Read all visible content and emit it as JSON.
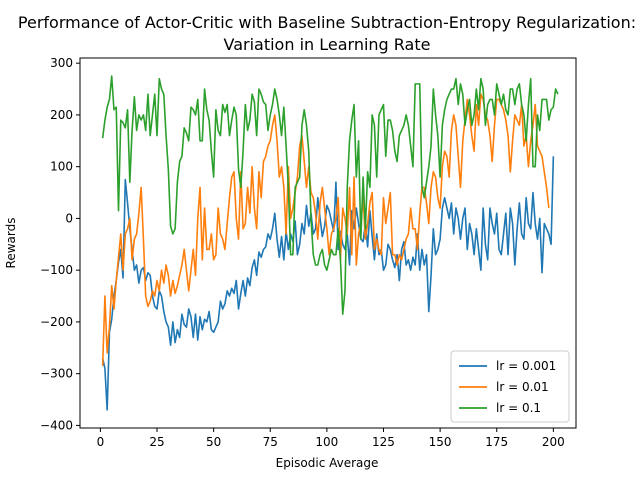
{
  "chart_data": {
    "type": "line",
    "title_line1": "Performance of Actor-Critic with Baseline Subtraction-Entropy Regularization:",
    "title_line2": "Variation in Learning Rate",
    "xlabel": "Episodic Average",
    "ylabel": "Rewards",
    "xlim": [
      -9,
      210
    ],
    "ylim": [
      -405,
      310
    ],
    "xticks": [
      0,
      25,
      50,
      75,
      100,
      125,
      150,
      175,
      200
    ],
    "yticks": [
      -400,
      -300,
      -200,
      -100,
      0,
      100,
      200,
      300
    ],
    "grid": false,
    "legend_position": "lower-right",
    "series": [
      {
        "name": "lr = 0.001",
        "color": "#1f77b4",
        "x_start": 1,
        "values": [
          -270,
          -290,
          -370,
          -220,
          -195,
          -150,
          -120,
          -85,
          -60,
          -115,
          75,
          30,
          -20,
          -60,
          -100,
          -90,
          -125,
          -100,
          -95,
          -120,
          -105,
          -110,
          -150,
          -170,
          -175,
          -140,
          -150,
          -180,
          -200,
          -210,
          -245,
          -200,
          -240,
          -215,
          -230,
          -185,
          -205,
          -210,
          -175,
          -190,
          -230,
          -185,
          -235,
          -190,
          -215,
          -195,
          -200,
          -180,
          -215,
          -220,
          -210,
          -200,
          -160,
          -175,
          -165,
          -140,
          -150,
          -135,
          -145,
          -120,
          -175,
          -145,
          -120,
          -150,
          -115,
          -130,
          -95,
          -80,
          -110,
          -65,
          -75,
          -60,
          -55,
          -30,
          -40,
          -20,
          10,
          -40,
          -75,
          -35,
          -80,
          -25,
          -60,
          -30,
          -45,
          -5,
          -70,
          -50,
          -10,
          -30,
          25,
          -15,
          10,
          -30,
          -20,
          40,
          0,
          -35,
          -15,
          25,
          15,
          -5,
          -25,
          70,
          -60,
          -25,
          -50,
          -60,
          -30,
          -90,
          15,
          -20,
          20,
          -10,
          -40,
          -45,
          -10,
          -55,
          15,
          -35,
          -80,
          -30,
          -70,
          -60,
          -100,
          -90,
          -50,
          -60,
          -80,
          -95,
          -70,
          -120,
          -60,
          -45,
          -90,
          -80,
          -100,
          -75,
          -90,
          -30,
          -100,
          -60,
          -90,
          -70,
          -180,
          -110,
          -20,
          -70,
          -60,
          -40,
          20,
          40,
          20,
          0,
          30,
          -30,
          20,
          0,
          -40,
          0,
          20,
          -60,
          -10,
          -30,
          -70,
          -20,
          -60,
          -100,
          20,
          -50,
          -80,
          20,
          -10,
          -30,
          10,
          -60,
          -70,
          -30,
          10,
          -70,
          20,
          -10,
          -90,
          -20,
          30,
          -30,
          -40,
          40,
          -10,
          -20,
          50,
          -10,
          -40,
          0,
          -105,
          -10,
          -20,
          -30,
          -50,
          120
        ]
      },
      {
        "name": "lr = 0.01",
        "color": "#ff7f0e",
        "x_start": 1,
        "values": [
          -285,
          -150,
          -260,
          -210,
          -130,
          -175,
          -120,
          -75,
          -30,
          -100,
          -30,
          -20,
          0,
          -80,
          -40,
          -30,
          10,
          60,
          -40,
          -150,
          -170,
          -160,
          -140,
          -150,
          -120,
          -140,
          -100,
          -125,
          -90,
          -110,
          -150,
          -120,
          -145,
          -130,
          -110,
          -90,
          -60,
          -100,
          -140,
          -100,
          -60,
          -110,
          0,
          60,
          -80,
          20,
          -60,
          -60,
          -30,
          -80,
          -70,
          20,
          -30,
          -40,
          -60,
          -10,
          40,
          80,
          90,
          0,
          -40,
          90,
          -20,
          -10,
          60,
          10,
          100,
          20,
          -20,
          90,
          40,
          110,
          120,
          140,
          150,
          180,
          200,
          150,
          80,
          100,
          60,
          -30,
          100,
          0,
          20,
          50,
          80,
          140,
          160,
          110,
          60,
          100,
          50,
          40,
          10,
          -40,
          30,
          60,
          20,
          -20,
          -70,
          -30,
          -20,
          0,
          40,
          -80,
          20,
          0,
          -30,
          60,
          -70,
          80,
          -90,
          -30,
          -10,
          40,
          -40,
          -10,
          30,
          50,
          -60,
          -40,
          -60,
          -70,
          40,
          -10,
          20,
          50,
          -70,
          -70,
          -90,
          -70,
          -80,
          -60,
          -40,
          -30,
          20,
          -20,
          -20,
          -60,
          10,
          60,
          60,
          30,
          -10,
          60,
          90,
          80,
          40,
          20,
          100,
          130,
          120,
          80,
          170,
          200,
          180,
          120,
          60,
          150,
          190,
          230,
          200,
          160,
          130,
          220,
          180,
          240,
          230,
          200,
          190,
          160,
          110,
          180,
          230,
          230,
          220,
          210,
          190,
          160,
          90,
          150,
          200,
          190,
          180,
          220,
          140,
          160,
          100,
          150,
          180,
          220,
          140,
          130,
          120,
          90,
          60,
          20
        ]
      },
      {
        "name": "lr = 0.1",
        "color": "#2ca02c",
        "x_start": 1,
        "values": [
          155,
          190,
          215,
          230,
          275,
          210,
          215,
          15,
          190,
          185,
          175,
          210,
          70,
          170,
          235,
          170,
          200,
          190,
          200,
          170,
          240,
          160,
          200,
          240,
          160,
          270,
          250,
          240,
          160,
          95,
          -15,
          -30,
          -20,
          70,
          110,
          120,
          175,
          165,
          150,
          215,
          210,
          200,
          230,
          150,
          150,
          250,
          210,
          190,
          130,
          80,
          210,
          170,
          160,
          220,
          205,
          220,
          160,
          190,
          215,
          200,
          95,
          60,
          130,
          220,
          170,
          190,
          240,
          225,
          160,
          250,
          240,
          225,
          220,
          170,
          200,
          220,
          250,
          230,
          200,
          160,
          215,
          140,
          60,
          -70,
          -70,
          60,
          70,
          80,
          180,
          210,
          180,
          130,
          0,
          -70,
          -90,
          -90,
          -70,
          -60,
          -90,
          -100,
          -80,
          -60,
          -70,
          -70,
          -20,
          -80,
          -185,
          -140,
          60,
          150,
          190,
          220,
          80,
          150,
          -40,
          80,
          -20,
          90,
          60,
          200,
          180,
          80,
          200,
          210,
          220,
          120,
          190,
          190,
          170,
          130,
          110,
          160,
          170,
          180,
          200,
          180,
          140,
          100,
          260,
          260,
          260,
          60,
          40,
          70,
          100,
          140,
          250,
          200,
          160,
          80,
          180,
          210,
          230,
          240,
          250,
          250,
          270,
          220,
          260,
          240,
          180,
          210,
          230,
          180,
          200,
          250,
          210,
          270,
          250,
          180,
          220,
          230,
          230,
          200,
          260,
          240,
          220,
          240,
          210,
          200,
          250,
          250,
          220,
          250,
          260,
          220,
          200,
          150,
          220,
          270,
          100,
          100,
          200,
          170,
          230,
          230,
          230,
          190,
          210,
          215,
          250,
          240
        ]
      }
    ]
  }
}
